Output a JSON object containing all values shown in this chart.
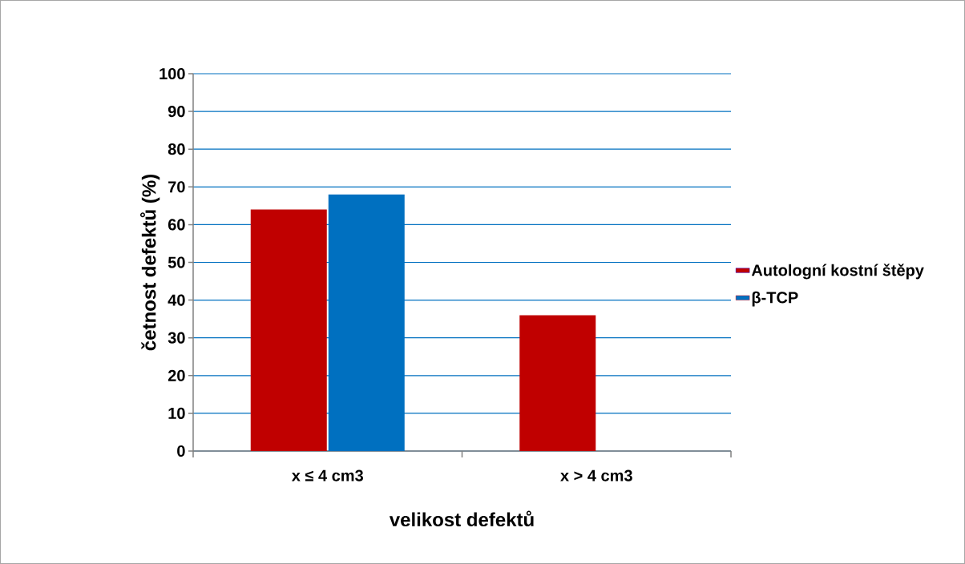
{
  "chart_data": {
    "type": "bar",
    "xlabel": "velikost defektů",
    "ylabel": "četnost defektů (%)",
    "categories": [
      "x ≤ 4 cm3",
      "x > 4 cm3"
    ],
    "series": [
      {
        "name": "Autologní kostní štěpy",
        "color": "#c00000",
        "values": [
          64,
          36
        ]
      },
      {
        "name": "β-TCP",
        "color": "#0070c0",
        "values": [
          68,
          null
        ]
      }
    ],
    "ylim": [
      0,
      100
    ],
    "yticks": [
      0,
      10,
      20,
      30,
      40,
      50,
      60,
      70,
      80,
      90,
      100
    ],
    "grid": "y",
    "legend": "right"
  }
}
